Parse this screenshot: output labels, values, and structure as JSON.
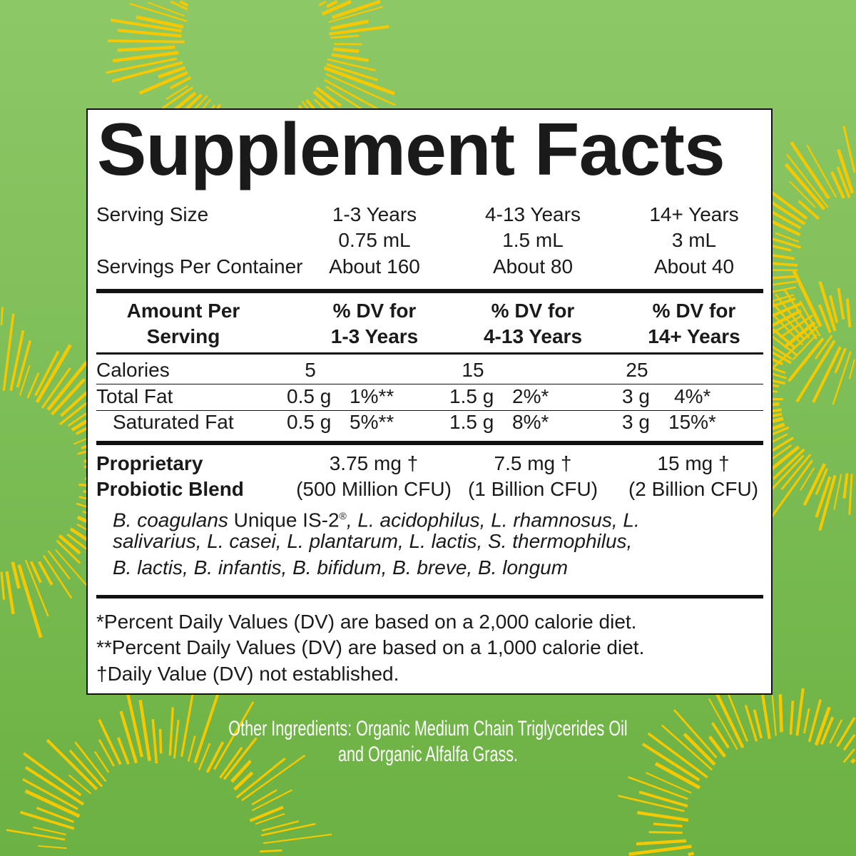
{
  "colors": {
    "background": "#7cbd55",
    "sun": "#f5c800",
    "panel": "#ffffff",
    "text": "#1a1a1a"
  },
  "title": "Supplement Facts",
  "serving": {
    "serving_size_label": "Serving Size",
    "servings_per_container_label": "Servings Per Container",
    "columns": [
      {
        "age": "1-3 Years",
        "size": "0.75 mL",
        "servings": "About 160"
      },
      {
        "age": "4-13 Years",
        "size": "1.5 mL",
        "servings": "About 80"
      },
      {
        "age": "14+ Years",
        "size": "3 mL",
        "servings": "About 40"
      }
    ]
  },
  "header": {
    "amount_line1": "Amount Per",
    "amount_line2": "Serving",
    "dv_line1": "% DV for",
    "columns": [
      "1-3 Years",
      "4-13 Years",
      "14+ Years"
    ]
  },
  "nutrients": [
    {
      "name": "Calories",
      "values": [
        {
          "amount": "5",
          "dv": ""
        },
        {
          "amount": "15",
          "dv": ""
        },
        {
          "amount": "25",
          "dv": ""
        }
      ]
    },
    {
      "name": "Total Fat",
      "values": [
        {
          "amount": "0.5 g",
          "dv": "1%**"
        },
        {
          "amount": "1.5 g",
          "dv": "2%*"
        },
        {
          "amount": "3 g",
          "dv": "4%*"
        }
      ]
    },
    {
      "name": "Saturated Fat",
      "values": [
        {
          "amount": "0.5 g",
          "dv": "5%**"
        },
        {
          "amount": "1.5 g",
          "dv": "8%*"
        },
        {
          "amount": "3 g",
          "dv": "15%*"
        }
      ]
    }
  ],
  "blend": {
    "name_line1": "Proprietary",
    "name_line2": "Probiotic Blend",
    "amounts": [
      "3.75 mg †",
      "7.5 mg †",
      "15 mg †"
    ],
    "cfu": [
      "(500 Million CFU)",
      "(1 Billion CFU)",
      "(2 Billion CFU)"
    ],
    "strain_first": "B. coagulans",
    "strain_trademark": " Unique IS-2",
    "registered": "®",
    "strains_line1_rest": ", L. acidophilus, L. rhamnosus, L.",
    "strains_line2": "salivarius, L. casei, L. plantarum, L. lactis, S. thermophilus,",
    "strains_line3": "B. lactis, B. infantis, B. bifidum, B. breve, B. longum"
  },
  "footnotes": [
    "*Percent Daily Values (DV) are based on a 2,000 calorie diet.",
    "**Percent Daily Values (DV) are based on a 1,000 calorie diet.",
    "†Daily Value (DV) not established."
  ],
  "other_ingredients": {
    "line1": "Other Ingredients: Organic Medium Chain Triglycerides Oil",
    "line2": "and Organic Alfalfa Grass."
  }
}
